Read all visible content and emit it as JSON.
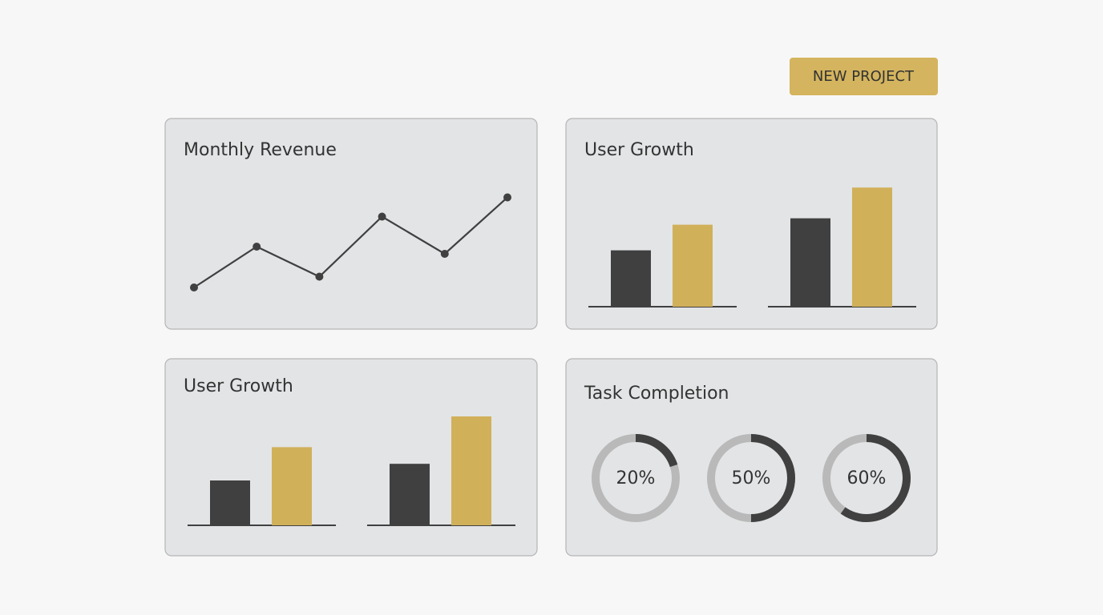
{
  "button": "NEW PROJECT",
  "chart_data": [
    {
      "type": "line",
      "title": "Monthly Revenue",
      "values": [
        14,
        48,
        23,
        73,
        42,
        89
      ],
      "color": "#404040",
      "ylim": [
        0,
        100
      ]
    },
    {
      "type": "bar",
      "title": "User Growth",
      "categories": [
        null,
        null
      ],
      "ylim": [
        0,
        100
      ],
      "series": [
        {
          "color": "#404040",
          "values": [
            44,
            69
          ]
        },
        {
          "color": "#d1b05a",
          "values": [
            64,
            93
          ]
        }
      ]
    },
    {
      "type": "bar",
      "title": "User Growth",
      "categories": [
        null,
        null
      ],
      "ylim": [
        0,
        100
      ],
      "series": [
        {
          "color": "#404040",
          "values": [
            35,
            48
          ]
        },
        {
          "color": "#d1b05a",
          "values": [
            61,
            85
          ]
        }
      ]
    },
    {
      "type": "donut",
      "title": "Task Completion",
      "values": [
        20,
        50,
        60
      ],
      "value_labels": [
        "20%",
        "50%",
        "60%"
      ],
      "color": "#404040",
      "track_color": "#b9b9b9"
    }
  ]
}
